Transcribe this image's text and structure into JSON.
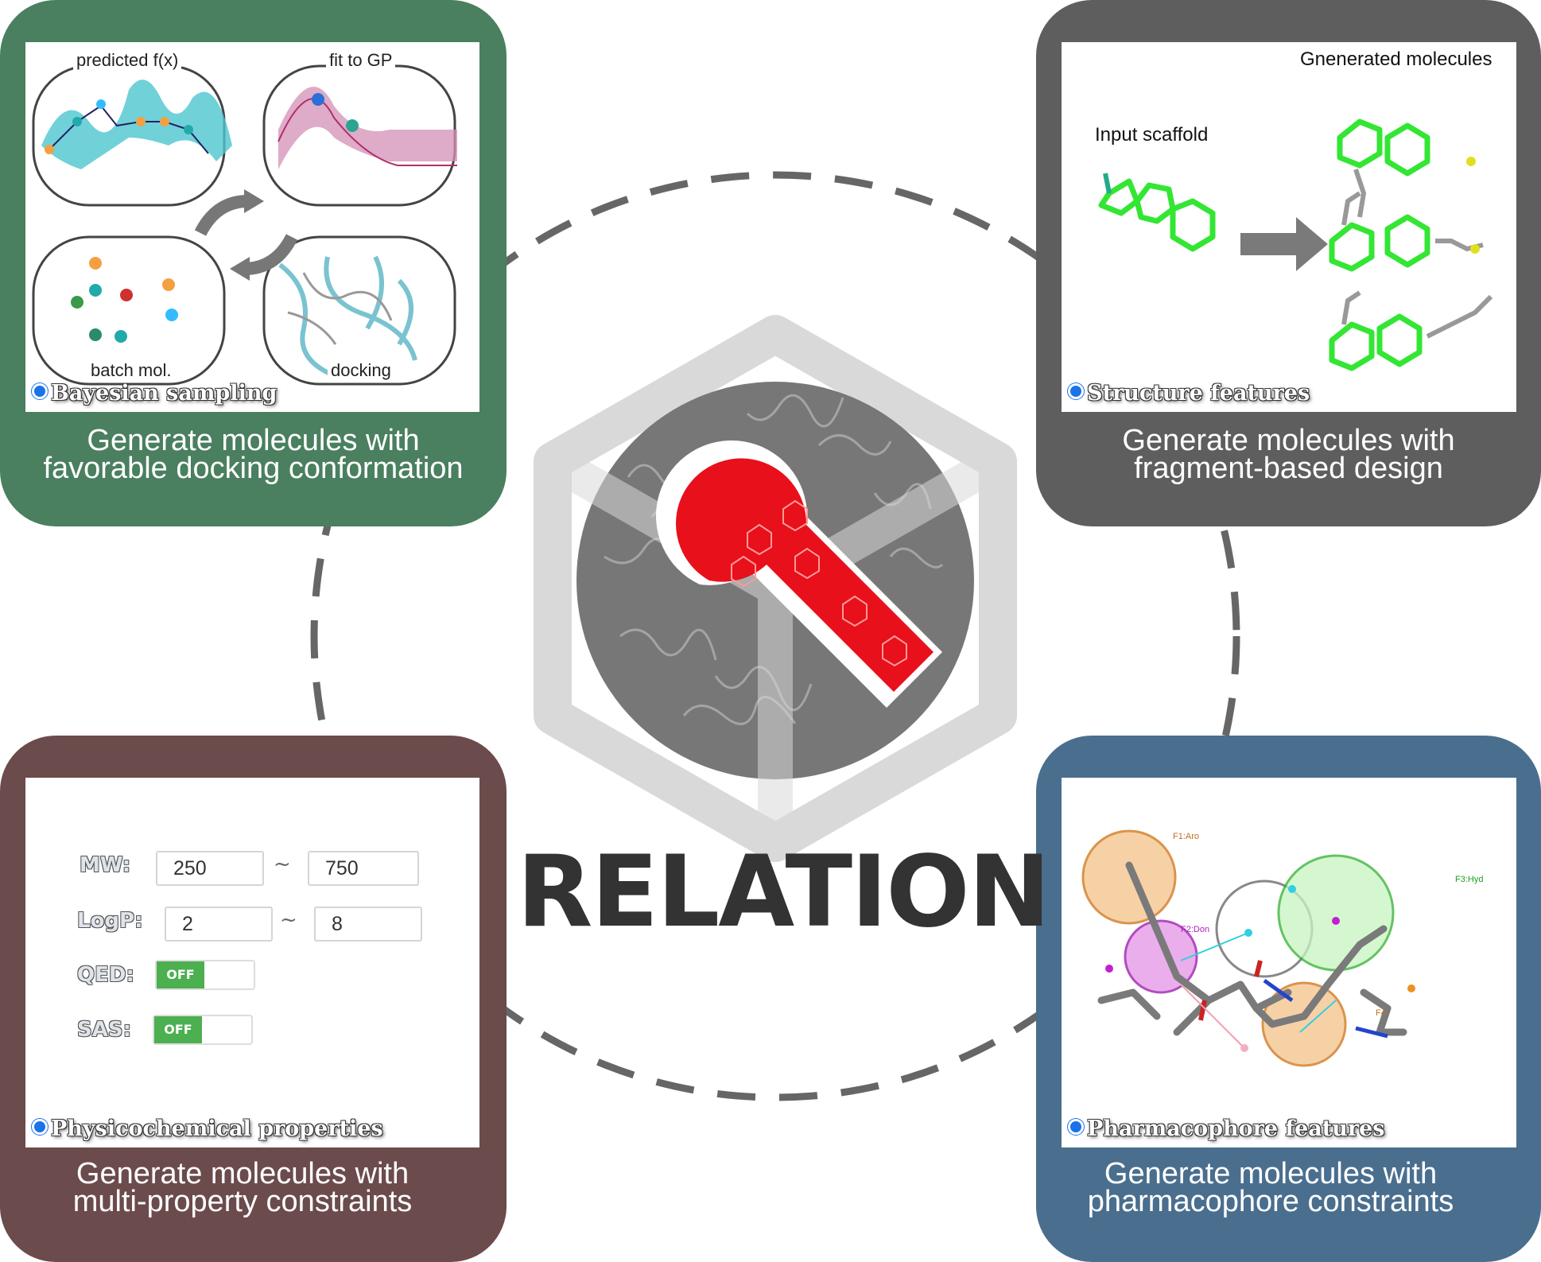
{
  "title": "RELATION",
  "panels": {
    "top_left": {
      "tag": "Bayesian sampling",
      "caption_line1": "Generate molecules with",
      "caption_line2": "favorable docking conformation",
      "labels": {
        "predicted": "predicted f(x)",
        "fit": "fit to GP",
        "batch": "batch mol.",
        "docking": "docking"
      },
      "color": "#4a7f5f"
    },
    "top_right": {
      "tag": "Structure features",
      "caption_line1": "Generate molecules with",
      "caption_line2": "fragment-based design",
      "labels": {
        "input": "Input scaffold",
        "generated": "Gnenerated molecules"
      },
      "color": "#5e5e5e"
    },
    "bottom_left": {
      "tag": "Physicochemical properties",
      "caption_line1": "Generate molecules with",
      "caption_line2": "multi-property constraints",
      "fields": {
        "mw_label": "MW:",
        "mw_min": "250",
        "mw_max": "750",
        "logp_label": "LogP:",
        "logp_min": "2",
        "logp_max": "8",
        "qed_label": "QED:",
        "qed_toggle": "OFF",
        "sas_label": "SAS:",
        "sas_toggle": "OFF",
        "tilde": "~"
      },
      "color": "#6b4b4b"
    },
    "bottom_right": {
      "tag": "Pharmacophore features",
      "caption_line1": "Generate molecules with",
      "caption_line2": "pharmacophore constraints",
      "labels": {
        "f1": "F1:Aro",
        "f2": "F2:Don",
        "f3": "F3:Hyd",
        "f4": "F4"
      },
      "color": "#4a6e8e"
    }
  },
  "colors": {
    "logo_red": "#e8101a",
    "logo_gray": "#777777",
    "cube": "#d9d9d9",
    "dashed": "#666666"
  }
}
